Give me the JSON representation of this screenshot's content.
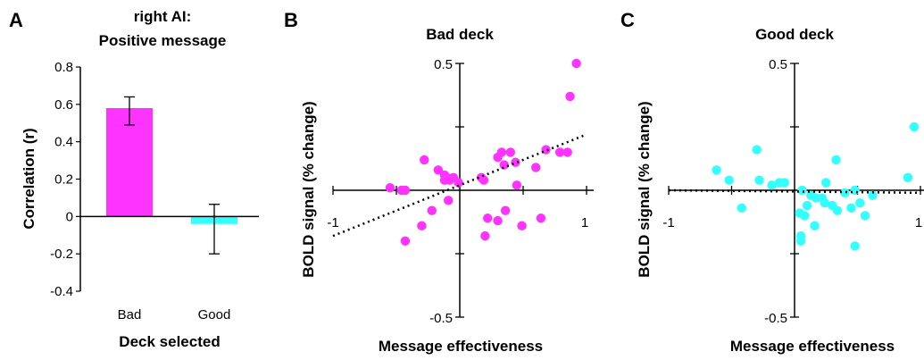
{
  "colors": {
    "bad": "#ff33ff",
    "good": "#33ffff",
    "axis": "#000000"
  },
  "chart_data": [
    {
      "type": "bar",
      "panel_label": "A",
      "title_lines": [
        "right AI:",
        "Positive message"
      ],
      "xlabel": "Deck selected",
      "ylabel": "Correlation (r)",
      "categories": [
        "Bad",
        "Good"
      ],
      "values": [
        0.58,
        -0.04
      ],
      "error_bars": [
        [
          0.49,
          0.64
        ],
        [
          -0.2,
          0.065
        ]
      ],
      "ylim": [
        -0.4,
        0.8
      ],
      "yticks": [
        "0.8",
        "0.6",
        "0.4",
        "0.2",
        "0",
        "-0.2",
        "-0.4"
      ],
      "grid": false
    },
    {
      "type": "scatter",
      "panel_label": "B",
      "title": "Bad deck",
      "xlabel": "Message effectiveness",
      "ylabel": "BOLD signal (% change)",
      "xlim": [
        -1,
        1
      ],
      "ylim": [
        -0.5,
        0.5
      ],
      "tick_labels": {
        "x_min": "-1",
        "x_max": "1",
        "y_max": "0.5",
        "y_min": "-0.5"
      },
      "trend": {
        "y_at_x_min": -0.18,
        "y_at_x_max": 0.22,
        "x_start": -1.0,
        "x_end": 1.0,
        "style": "dotted"
      },
      "points": [
        [
          0.92,
          0.5
        ],
        [
          0.87,
          0.37
        ],
        [
          0.45,
          0.02
        ],
        [
          0.68,
          0.16
        ],
        [
          0.44,
          0.11
        ],
        [
          0.4,
          0.15
        ],
        [
          0.33,
          0.15
        ],
        [
          0.3,
          0.13
        ],
        [
          0.35,
          0.1
        ],
        [
          0.85,
          0.15
        ],
        [
          0.79,
          0.15
        ],
        [
          0.6,
          0.09
        ],
        [
          0.64,
          -0.11
        ],
        [
          0.49,
          -0.14
        ],
        [
          0.36,
          -0.08
        ],
        [
          0.3,
          -0.12
        ],
        [
          0.19,
          0.04
        ],
        [
          0.17,
          0.05
        ],
        [
          -0.28,
          0.12
        ],
        [
          -0.17,
          0.08
        ],
        [
          -0.12,
          0.06
        ],
        [
          -0.1,
          0.05
        ],
        [
          -0.08,
          0.04
        ],
        [
          -0.12,
          0.04
        ],
        [
          -0.05,
          0.05
        ],
        [
          -0.01,
          0.03
        ],
        [
          -0.55,
          0.01
        ],
        [
          -0.43,
          0.0
        ],
        [
          -0.46,
          0.0
        ],
        [
          -0.09,
          -0.04
        ],
        [
          -0.22,
          -0.08
        ],
        [
          -0.3,
          -0.14
        ],
        [
          -0.43,
          -0.2
        ],
        [
          0.22,
          -0.11
        ],
        [
          0.2,
          -0.18
        ]
      ]
    },
    {
      "type": "scatter",
      "panel_label": "C",
      "title": "Good deck",
      "xlabel": "Message effectiveness",
      "ylabel": "BOLD signal (% change)",
      "xlim": [
        -1,
        1
      ],
      "ylim": [
        -0.5,
        0.5
      ],
      "tick_labels": {
        "x_min": "-1",
        "x_max": "1",
        "y_max": "0.5",
        "y_min": "-0.5"
      },
      "trend": {
        "y_at_x_min": 0.0,
        "y_at_x_max": -0.01,
        "x_start": -1.0,
        "x_end": 1.0,
        "style": "dotted"
      },
      "points": [
        [
          -0.62,
          0.08
        ],
        [
          -0.52,
          0.04
        ],
        [
          -0.3,
          0.16
        ],
        [
          -0.28,
          0.04
        ],
        [
          -0.18,
          0.02
        ],
        [
          -0.12,
          0.03
        ],
        [
          -0.08,
          0.03
        ],
        [
          -0.42,
          -0.07
        ],
        [
          0.33,
          0.12
        ],
        [
          0.25,
          0.03
        ],
        [
          0.06,
          0.0
        ],
        [
          0.13,
          -0.02
        ],
        [
          0.17,
          -0.03
        ],
        [
          0.22,
          -0.03
        ],
        [
          0.24,
          -0.05
        ],
        [
          0.34,
          -0.08
        ],
        [
          0.3,
          -0.06
        ],
        [
          0.48,
          0.0
        ],
        [
          0.52,
          -0.05
        ],
        [
          0.56,
          -0.1
        ],
        [
          0.62,
          -0.02
        ],
        [
          0.4,
          -0.01
        ],
        [
          0.1,
          -0.06
        ],
        [
          0.08,
          -0.1
        ],
        [
          0.04,
          -0.09
        ],
        [
          0.16,
          -0.14
        ],
        [
          0.05,
          -0.2
        ],
        [
          0.05,
          -0.18
        ],
        [
          0.45,
          -0.07
        ],
        [
          0.9,
          0.05
        ],
        [
          0.95,
          0.25
        ],
        [
          0.48,
          -0.22
        ]
      ]
    }
  ]
}
